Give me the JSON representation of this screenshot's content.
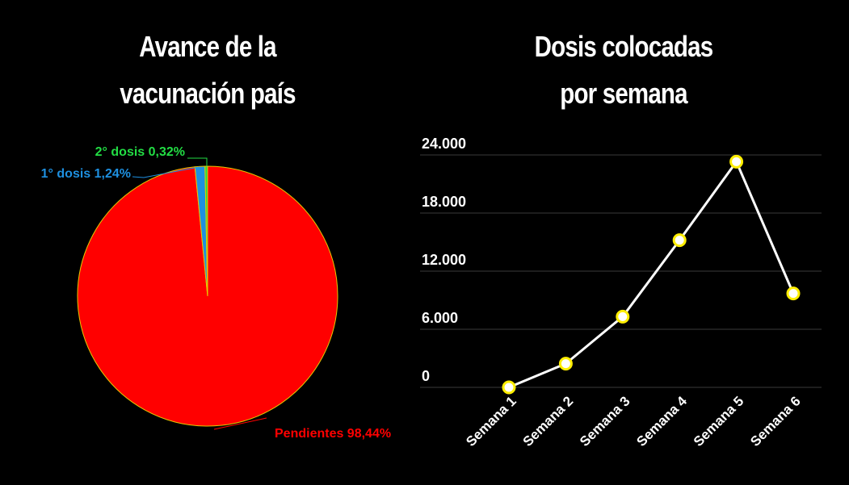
{
  "chart_data": [
    {
      "type": "pie",
      "title_lines": [
        "Avance de la",
        "vacunación país"
      ],
      "slices": [
        {
          "label": "Pendientes",
          "value": 98.44,
          "display": "Pendientes 98,44%",
          "color": "#ff0000"
        },
        {
          "label": "1° dosis",
          "value": 1.24,
          "display": "1° dosis 1,24%",
          "color": "#1e90e0"
        },
        {
          "label": "2° dosis",
          "value": 0.32,
          "display": "2° dosis 0,32%",
          "color": "#22dd44"
        }
      ],
      "border_color": "#e6c800"
    },
    {
      "type": "line",
      "title_lines": [
        "Dosis colocadas",
        "por semana"
      ],
      "categories": [
        "Semana 1",
        "Semana 2",
        "Semana 3",
        "Semana 4",
        "Semana 5",
        "Semana 6"
      ],
      "values": [
        0,
        2450,
        7300,
        15200,
        23300,
        9700
      ],
      "ylim": [
        0,
        24000
      ],
      "yticks": [
        0,
        6000,
        12000,
        18000,
        24000
      ],
      "ytick_labels": [
        "0",
        "6.000",
        "12.000",
        "18.000",
        "24.000"
      ],
      "grid": true,
      "line_color": "#ffffff",
      "marker_fill": "#ffffff",
      "marker_edge": "#ffee00"
    }
  ]
}
